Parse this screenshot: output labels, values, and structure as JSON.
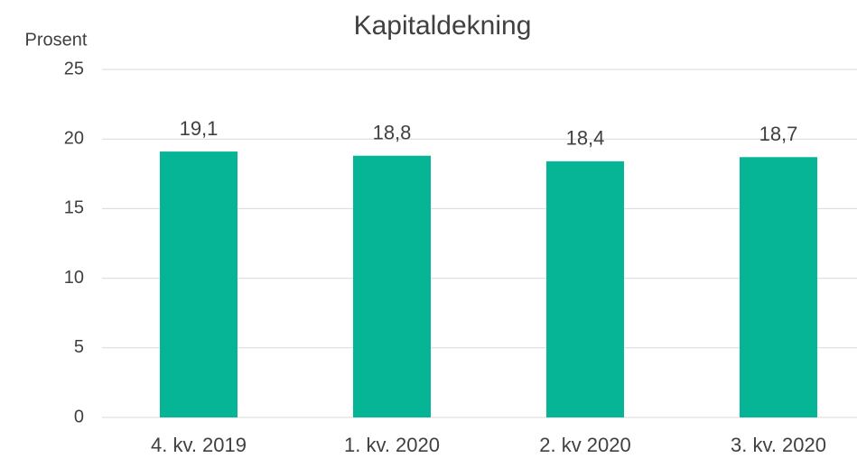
{
  "chart_data": {
    "type": "bar",
    "title": "Kapitaldekning",
    "y_label": "Prosent",
    "categories": [
      "4. kv. 2019",
      "1. kv. 2020",
      "2. kv 2020",
      "3. kv. 2020"
    ],
    "values": [
      19.1,
      18.8,
      18.4,
      18.7
    ],
    "value_labels": [
      "19,1",
      "18,8",
      "18,4",
      "18,7"
    ],
    "color": "#06b596",
    "ylim": [
      0,
      25
    ],
    "yticks": [
      0,
      5,
      10,
      15,
      20,
      25
    ],
    "grid": true
  }
}
